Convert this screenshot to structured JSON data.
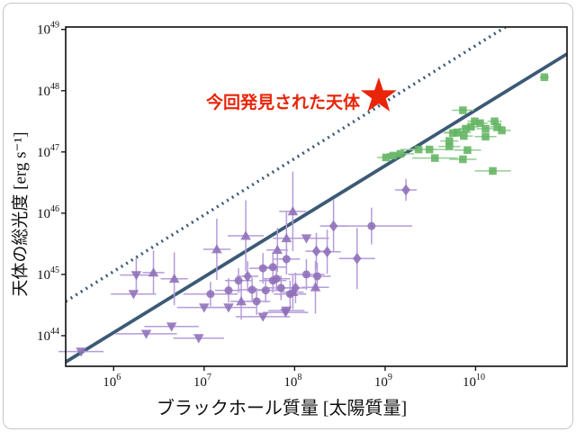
{
  "figure": {
    "background": "#ffffff",
    "border_color": "#c3c3c3",
    "spine_color": "#1a1a1a",
    "line_color": "#3c5a76",
    "red_accent": "#e92409",
    "green_marker": "#62b462",
    "green_errorbar": "#93ce93",
    "purple_marker": "#8e6fb8",
    "purple_errorbar": "#b59cda"
  },
  "chart_data": {
    "type": "scatter",
    "title": "",
    "xlabel": "ブラックホール質量 [太陽質量]",
    "ylabel": "天体の総光度 [erg s⁻¹]",
    "x_scale": "log",
    "y_scale": "log",
    "xlim_log": [
      5.47,
      11.01
    ],
    "ylim_log": [
      43.5,
      49.04
    ],
    "x_ticks_log": [
      6,
      7,
      8,
      9,
      10
    ],
    "y_ticks_log": [
      44,
      45,
      46,
      47,
      48,
      49
    ],
    "grid": false,
    "legend": "none",
    "annotation": {
      "text": "今回発見された天体",
      "color": "#e92409",
      "star_point": {
        "logM": 8.93,
        "logL": 47.91
      },
      "star_color": "#e92409"
    },
    "lines": [
      {
        "name": "dotted-relation-line",
        "style": "dotted",
        "color": "#3c5a76",
        "x_log": [
          5.47,
          10.33
        ],
        "y_log": [
          44.56,
          49.04
        ]
      },
      {
        "name": "solid-relation-line",
        "style": "solid",
        "color": "#3c5a76",
        "x_log": [
          5.47,
          11.01
        ],
        "y_log": [
          43.57,
          48.6
        ]
      }
    ],
    "series": [
      {
        "name": "green-squares",
        "marker": "s",
        "color": "#62b462",
        "errorbar_color": "#93ce93",
        "points": [
          {
            "m": 10.76,
            "l": 48.22,
            "t": "s",
            "xe": 0.05,
            "ye": 0
          },
          {
            "m": 9.86,
            "l": 47.68,
            "t": "s",
            "xe": 0.12,
            "ye": 0
          },
          {
            "m": 9.99,
            "l": 47.5,
            "t": "s",
            "xe": 0.08,
            "ye": 0
          },
          {
            "m": 10.05,
            "l": 47.47,
            "t": "s",
            "xe": 0.08,
            "ye": 0
          },
          {
            "m": 10.21,
            "l": 47.5,
            "t": "s",
            "xe": 0.08,
            "ye": 0
          },
          {
            "m": 10.24,
            "l": 47.41,
            "t": "s",
            "xe": 0.08,
            "ye": 0
          },
          {
            "m": 10.29,
            "l": 47.35,
            "t": "s",
            "xe": 0.1,
            "ye": 0
          },
          {
            "m": 10.11,
            "l": 47.38,
            "t": "s",
            "xe": 0.1,
            "ye": 0
          },
          {
            "m": 9.89,
            "l": 47.38,
            "t": "s",
            "xe": 0.08,
            "ye": 0
          },
          {
            "m": 9.95,
            "l": 47.41,
            "t": "s",
            "xe": 0.08,
            "ye": 0
          },
          {
            "m": 9.8,
            "l": 47.32,
            "t": "s",
            "xe": 0.15,
            "ye": 0
          },
          {
            "m": 9.75,
            "l": 47.31,
            "t": "s",
            "xe": 0.1,
            "ye": 0
          },
          {
            "m": 9.87,
            "l": 47.26,
            "t": "s",
            "xe": 0.1,
            "ye": 0
          },
          {
            "m": 10.11,
            "l": 47.25,
            "t": "s",
            "xe": 0.12,
            "ye": 0
          },
          {
            "m": 9.71,
            "l": 47.18,
            "t": "s",
            "xe": 0.1,
            "ye": 0
          },
          {
            "m": 9.71,
            "l": 47.09,
            "t": "s",
            "xe": 0.12,
            "ye": 0
          },
          {
            "m": 9.49,
            "l": 47.04,
            "t": "s",
            "xe": 0.2,
            "ye": 0
          },
          {
            "m": 9.91,
            "l": 47.03,
            "t": "s",
            "xe": 0.15,
            "ye": 0
          },
          {
            "m": 9.55,
            "l": 46.9,
            "t": "s",
            "xe": 0.25,
            "ye": 0
          },
          {
            "m": 9.86,
            "l": 46.88,
            "t": "s",
            "xe": 0.15,
            "ye": 0
          },
          {
            "m": 10.19,
            "l": 46.69,
            "t": "s",
            "xe": 0.2,
            "ye": 0
          },
          {
            "m": 9.01,
            "l": 46.91,
            "t": "s",
            "xe": 0.1,
            "ye": 0
          },
          {
            "m": 9.09,
            "l": 46.94,
            "t": "s",
            "xe": 0.1,
            "ye": 0
          },
          {
            "m": 9.37,
            "l": 47.04,
            "t": "s",
            "xe": 0.2,
            "ye": 0
          },
          {
            "m": 9.17,
            "l": 46.97,
            "t": "s",
            "xe": 0.15,
            "ye": 0
          }
        ]
      },
      {
        "name": "purple-agn",
        "marker": "mixed",
        "color": "#8e6fb8",
        "errorbar_color": "#b59cda",
        "points": [
          {
            "m": 5.64,
            "l": 43.74,
            "t": "v",
            "xe": 0.25,
            "ye": 0
          },
          {
            "m": 6.25,
            "l": 44.99,
            "t": "v",
            "xe": 0.18,
            "ye": 0.28
          },
          {
            "m": 6.44,
            "l": 45.03,
            "t": "^",
            "xe": 0.12,
            "ye": 0.36
          },
          {
            "m": 6.67,
            "l": 44.93,
            "t": "^",
            "xe": 0.15,
            "ye": 0.43
          },
          {
            "m": 6.22,
            "l": 44.68,
            "t": "v",
            "xe": 0.25,
            "ye": 0
          },
          {
            "m": 6.36,
            "l": 44.03,
            "t": "v",
            "xe": 0.34,
            "ye": 0
          },
          {
            "m": 6.64,
            "l": 44.15,
            "t": "v",
            "xe": 0.3,
            "ye": 0
          },
          {
            "m": 6.94,
            "l": 43.96,
            "t": "v",
            "xe": 0.28,
            "ye": 0
          },
          {
            "m": 7.0,
            "l": 44.46,
            "t": "v",
            "xe": 0.3,
            "ye": 0
          },
          {
            "m": 7.27,
            "l": 44.46,
            "t": "v",
            "xe": 0.3,
            "ye": 0
          },
          {
            "m": 7.14,
            "l": 45.41,
            "t": "^",
            "xe": 0.15,
            "ye": 0.5
          },
          {
            "m": 7.46,
            "l": 45.63,
            "t": "^",
            "xe": 0.2,
            "ye": 0.58
          },
          {
            "m": 7.98,
            "l": 46.03,
            "t": "^",
            "xe": 0.15,
            "ye": 0.65
          },
          {
            "m": 8.13,
            "l": 45.59,
            "t": "v",
            "xe": 0.25,
            "ye": 0
          },
          {
            "m": 7.91,
            "l": 45.59,
            "t": "^",
            "xe": 0.15,
            "ye": 0.43
          },
          {
            "m": 7.81,
            "l": 45.4,
            "t": "^",
            "xe": 0.12,
            "ye": 0.36
          },
          {
            "m": 7.38,
            "l": 44.9,
            "t": "o",
            "xe": 0.15,
            "ye": 0.2
          },
          {
            "m": 7.27,
            "l": 44.74,
            "t": "o",
            "xe": 0.15,
            "ye": 0.2
          },
          {
            "m": 7.07,
            "l": 44.68,
            "t": "o",
            "xe": 0.3,
            "ye": 0.2
          },
          {
            "m": 7.48,
            "l": 44.97,
            "t": "d",
            "xe": 0.12,
            "ye": 0.25
          },
          {
            "m": 7.53,
            "l": 44.75,
            "t": "o",
            "xe": 0.15,
            "ye": 0.2
          },
          {
            "m": 7.65,
            "l": 45.1,
            "t": "o",
            "xe": 0.15,
            "ye": 0.25
          },
          {
            "m": 7.76,
            "l": 45.12,
            "t": "o",
            "xe": 0.15,
            "ye": 0.25
          },
          {
            "m": 7.68,
            "l": 44.74,
            "t": "o",
            "xe": 0.18,
            "ye": 0.2
          },
          {
            "m": 7.76,
            "l": 44.9,
            "t": "o",
            "xe": 0.15,
            "ye": 0.2
          },
          {
            "m": 7.85,
            "l": 44.78,
            "t": "o",
            "xe": 0.15,
            "ye": 0.2
          },
          {
            "m": 7.95,
            "l": 44.68,
            "t": "o",
            "xe": 0.18,
            "ye": 0.22
          },
          {
            "m": 8.01,
            "l": 44.78,
            "t": "d",
            "xe": 0.12,
            "ye": 0.25
          },
          {
            "m": 7.41,
            "l": 44.56,
            "t": "^",
            "xe": 0.12,
            "ye": 0.3
          },
          {
            "m": 7.58,
            "l": 44.56,
            "t": "o",
            "xe": 0.15,
            "ye": 0.22
          },
          {
            "m": 7.65,
            "l": 44.31,
            "t": "v",
            "xe": 0.3,
            "ye": 0
          },
          {
            "m": 7.9,
            "l": 44.38,
            "t": "v",
            "xe": 0.25,
            "ye": 0
          },
          {
            "m": 8.23,
            "l": 44.79,
            "t": "^",
            "xe": 0.15,
            "ye": 0.43
          },
          {
            "m": 8.13,
            "l": 45.0,
            "t": "o",
            "xe": 0.2,
            "ye": 0.25
          },
          {
            "m": 8.25,
            "l": 44.97,
            "t": "o",
            "xe": 0.15,
            "ye": 0.22
          },
          {
            "m": 8.24,
            "l": 45.38,
            "t": "d",
            "xe": 0.12,
            "ye": 0.3
          },
          {
            "m": 8.36,
            "l": 45.37,
            "t": "d",
            "xe": 0.15,
            "ye": 0.36
          },
          {
            "m": 7.91,
            "l": 45.25,
            "t": "o",
            "xe": 0.15,
            "ye": 0.25
          },
          {
            "m": 8.43,
            "l": 45.79,
            "t": "d",
            "xe": 0.15,
            "ye": 0.43
          },
          {
            "m": 8.85,
            "l": 45.79,
            "t": "o",
            "xe": 0.45,
            "ye": 0.3
          },
          {
            "m": 8.69,
            "l": 45.26,
            "t": "d",
            "xe": 0.2,
            "ye": 0.5
          },
          {
            "m": 9.23,
            "l": 46.38,
            "t": "d",
            "xe": 0.12,
            "ye": 0.18
          },
          {
            "m": 7.91,
            "l": 44.41,
            "t": "v",
            "xe": 0.2,
            "ye": 0
          },
          {
            "m": 7.98,
            "l": 44.71,
            "t": "^",
            "xe": 0.12,
            "ye": 0.28
          },
          {
            "m": 7.8,
            "l": 44.93,
            "t": "o",
            "xe": 0.15,
            "ye": 0.2
          }
        ]
      }
    ]
  }
}
